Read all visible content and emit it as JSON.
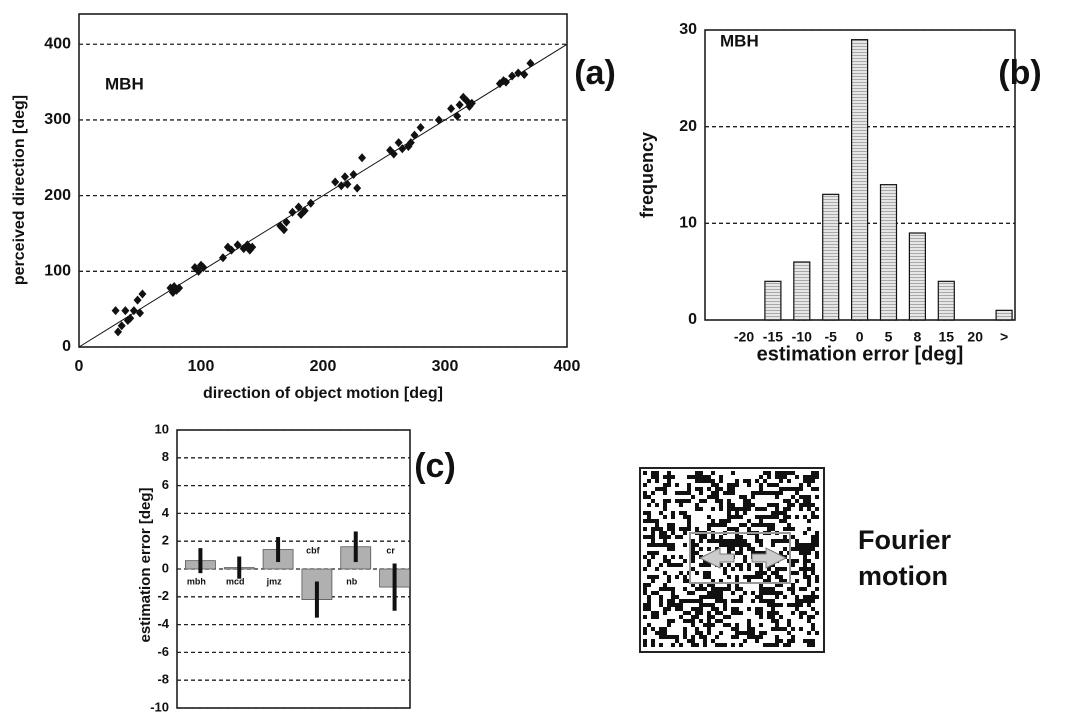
{
  "chart_data": [
    {
      "type": "scatter",
      "panel_label": "(a)",
      "annotation": "MBH",
      "x_label": "direction of object motion [deg]",
      "y_label": "perceived direction [deg]",
      "x": [
        30,
        32,
        35,
        38,
        40,
        42,
        45,
        48,
        50,
        52,
        75,
        77,
        78,
        80,
        82,
        95,
        98,
        100,
        102,
        118,
        122,
        125,
        130,
        135,
        138,
        140,
        142,
        165,
        168,
        170,
        175,
        180,
        182,
        185,
        190,
        210,
        215,
        218,
        220,
        225,
        228,
        232,
        255,
        258,
        262,
        265,
        270,
        272,
        275,
        280,
        295,
        305,
        310,
        312,
        315,
        318,
        320,
        322,
        345,
        348,
        350,
        355,
        360,
        365,
        370
      ],
      "y": [
        48,
        20,
        28,
        48,
        35,
        38,
        48,
        62,
        45,
        70,
        78,
        72,
        80,
        75,
        78,
        105,
        100,
        108,
        105,
        118,
        132,
        128,
        135,
        130,
        135,
        128,
        132,
        160,
        155,
        165,
        178,
        185,
        175,
        180,
        190,
        218,
        213,
        225,
        215,
        228,
        210,
        250,
        260,
        255,
        270,
        262,
        265,
        270,
        280,
        290,
        300,
        315,
        305,
        320,
        330,
        325,
        318,
        322,
        348,
        352,
        350,
        358,
        362,
        360,
        375
      ],
      "color": "#111111",
      "xlim": [
        0,
        400
      ],
      "ylim": [
        0,
        440
      ],
      "xticks": [
        0,
        100,
        200,
        300,
        400
      ],
      "yticks": [
        0,
        100,
        200,
        300,
        400
      ],
      "grid": true
    },
    {
      "type": "bar",
      "panel_label": "(b)",
      "annotation": "MBH",
      "x_label": "estimation error [deg]",
      "y_label": "frequency",
      "categories": [
        "-20",
        "-15",
        "-10",
        "-5",
        "0",
        "5",
        "8",
        "15",
        "20",
        ">"
      ],
      "values": [
        0,
        4,
        6,
        13,
        29,
        14,
        9,
        4,
        0,
        1
      ],
      "color": "#d4d4d4",
      "ylim": [
        0,
        30
      ],
      "yticks": [
        0,
        10,
        20,
        30
      ],
      "grid": true
    },
    {
      "type": "errorbar",
      "panel_label": "(c)",
      "y_label": "estimation error [deg]",
      "categories": [
        "mbh",
        "mcd",
        "jmz",
        "cbf",
        "nb",
        "cr"
      ],
      "values": [
        0.6,
        0.1,
        1.4,
        -2.2,
        1.6,
        -1.3
      ],
      "errors": [
        0.9,
        0.8,
        0.9,
        1.3,
        1.1,
        1.7
      ],
      "color": "#b0b0b0",
      "ylim": [
        -10,
        10
      ],
      "yticks": [
        -10,
        -8,
        -6,
        -4,
        -2,
        0,
        2,
        4,
        6,
        8,
        10
      ],
      "grid": true
    }
  ],
  "stimulus": {
    "caption": "Fourier motion"
  }
}
